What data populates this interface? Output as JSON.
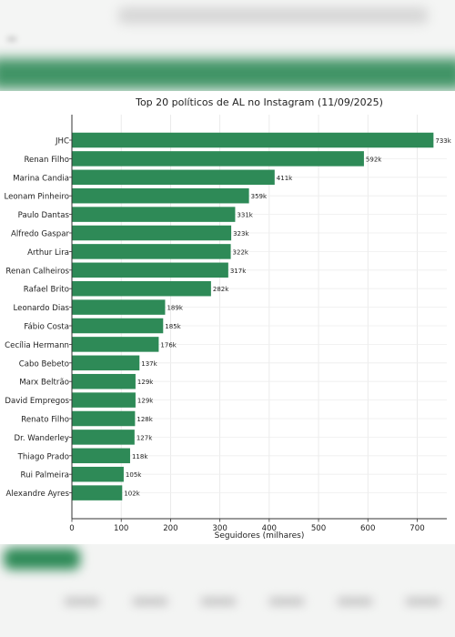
{
  "chart_data": {
    "type": "bar",
    "orientation": "horizontal",
    "title": "Top 20 políticos de AL no Instagram (11/09/2025)",
    "xlabel": "Seguidores (milhares)",
    "ylabel": "",
    "xlim": [
      0,
      760
    ],
    "xticks": [
      0,
      100,
      200,
      300,
      400,
      500,
      600,
      700
    ],
    "grid": true,
    "bar_color": "#2e8a57",
    "categories": [
      "JHC",
      "Renan Filho",
      "Marina Candia",
      "Leonam Pinheiro",
      "Paulo Dantas",
      "Alfredo Gaspar",
      "Arthur Lira",
      "Renan Calheiros",
      "Rafael Brito",
      "Leonardo Dias",
      "Fábio Costa",
      "Cecília Hermann",
      "Cabo Bebeto",
      "Marx Beltrão",
      "David Empregos",
      "Renato Filho",
      "Dr. Wanderley",
      "Thiago Prado",
      "Rui Palmeira",
      "Alexandre Ayres"
    ],
    "values": [
      733,
      592,
      411,
      359,
      331,
      323,
      322,
      317,
      282,
      189,
      185,
      176,
      137,
      129,
      129,
      128,
      127,
      118,
      105,
      102
    ],
    "labels": [
      "733k",
      "592k",
      "411k",
      "359k",
      "331k",
      "323k",
      "322k",
      "317k",
      "282k",
      "189k",
      "185k",
      "176k",
      "137k",
      "129k",
      "129k",
      "128k",
      "127k",
      "118k",
      "105k",
      "102k"
    ]
  }
}
